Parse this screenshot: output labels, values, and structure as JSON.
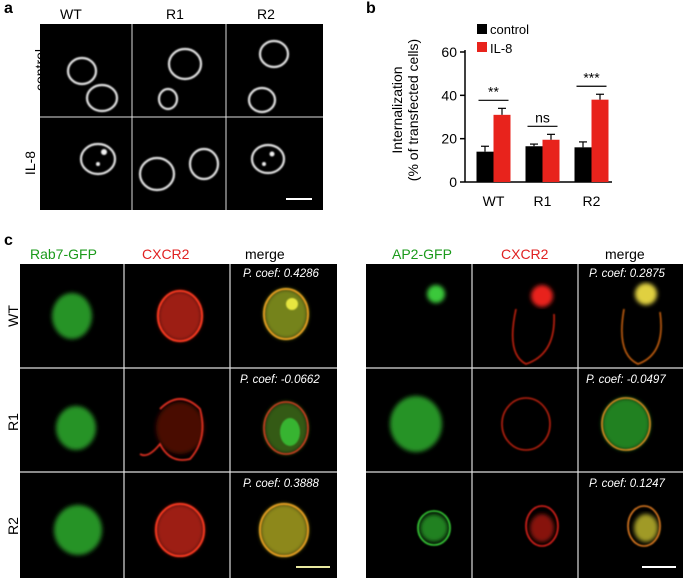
{
  "panel_a": {
    "letter": "a",
    "columns": [
      "WT",
      "R1",
      "R2"
    ],
    "rows": [
      "control",
      "IL-8"
    ]
  },
  "panel_b": {
    "letter": "b",
    "chart_data": {
      "type": "bar",
      "categories": [
        "WT",
        "R1",
        "R2"
      ],
      "series": [
        {
          "name": "control",
          "values": [
            14,
            16.5,
            16
          ],
          "errors": [
            2.5,
            1,
            2.5
          ],
          "color": "#000000"
        },
        {
          "name": "IL-8",
          "values": [
            31,
            19.5,
            38
          ],
          "errors": [
            3,
            2.5,
            2.5
          ],
          "color": "#e8231c"
        }
      ],
      "ylabel_line1": "Internalization",
      "ylabel_line2": "(% of transfected cells)",
      "ylim": [
        0,
        60
      ],
      "yticks": [
        "0",
        "20",
        "40",
        "60"
      ],
      "significance": [
        "**",
        "ns",
        "***"
      ],
      "legend_position": "top-left"
    }
  },
  "panel_c": {
    "letter": "c",
    "left_headers": [
      "Rab7-GFP",
      "CXCR2",
      "merge"
    ],
    "right_headers": [
      "AP2-GFP",
      "CXCR2",
      "merge"
    ],
    "rows": [
      "WT",
      "R1",
      "R2"
    ],
    "left_coefs": [
      "P. coef: 0.4286",
      "P. coef: -0.0662",
      "P. coef: 0.3888"
    ],
    "right_coefs": [
      "P. coef: 0.2875",
      "P. coef: -0.0497",
      "P. coef: 0.1247"
    ]
  },
  "colors": {
    "green_label": "#1a9a1a",
    "red_label": "#e02020",
    "bar_red": "#e8231c"
  }
}
